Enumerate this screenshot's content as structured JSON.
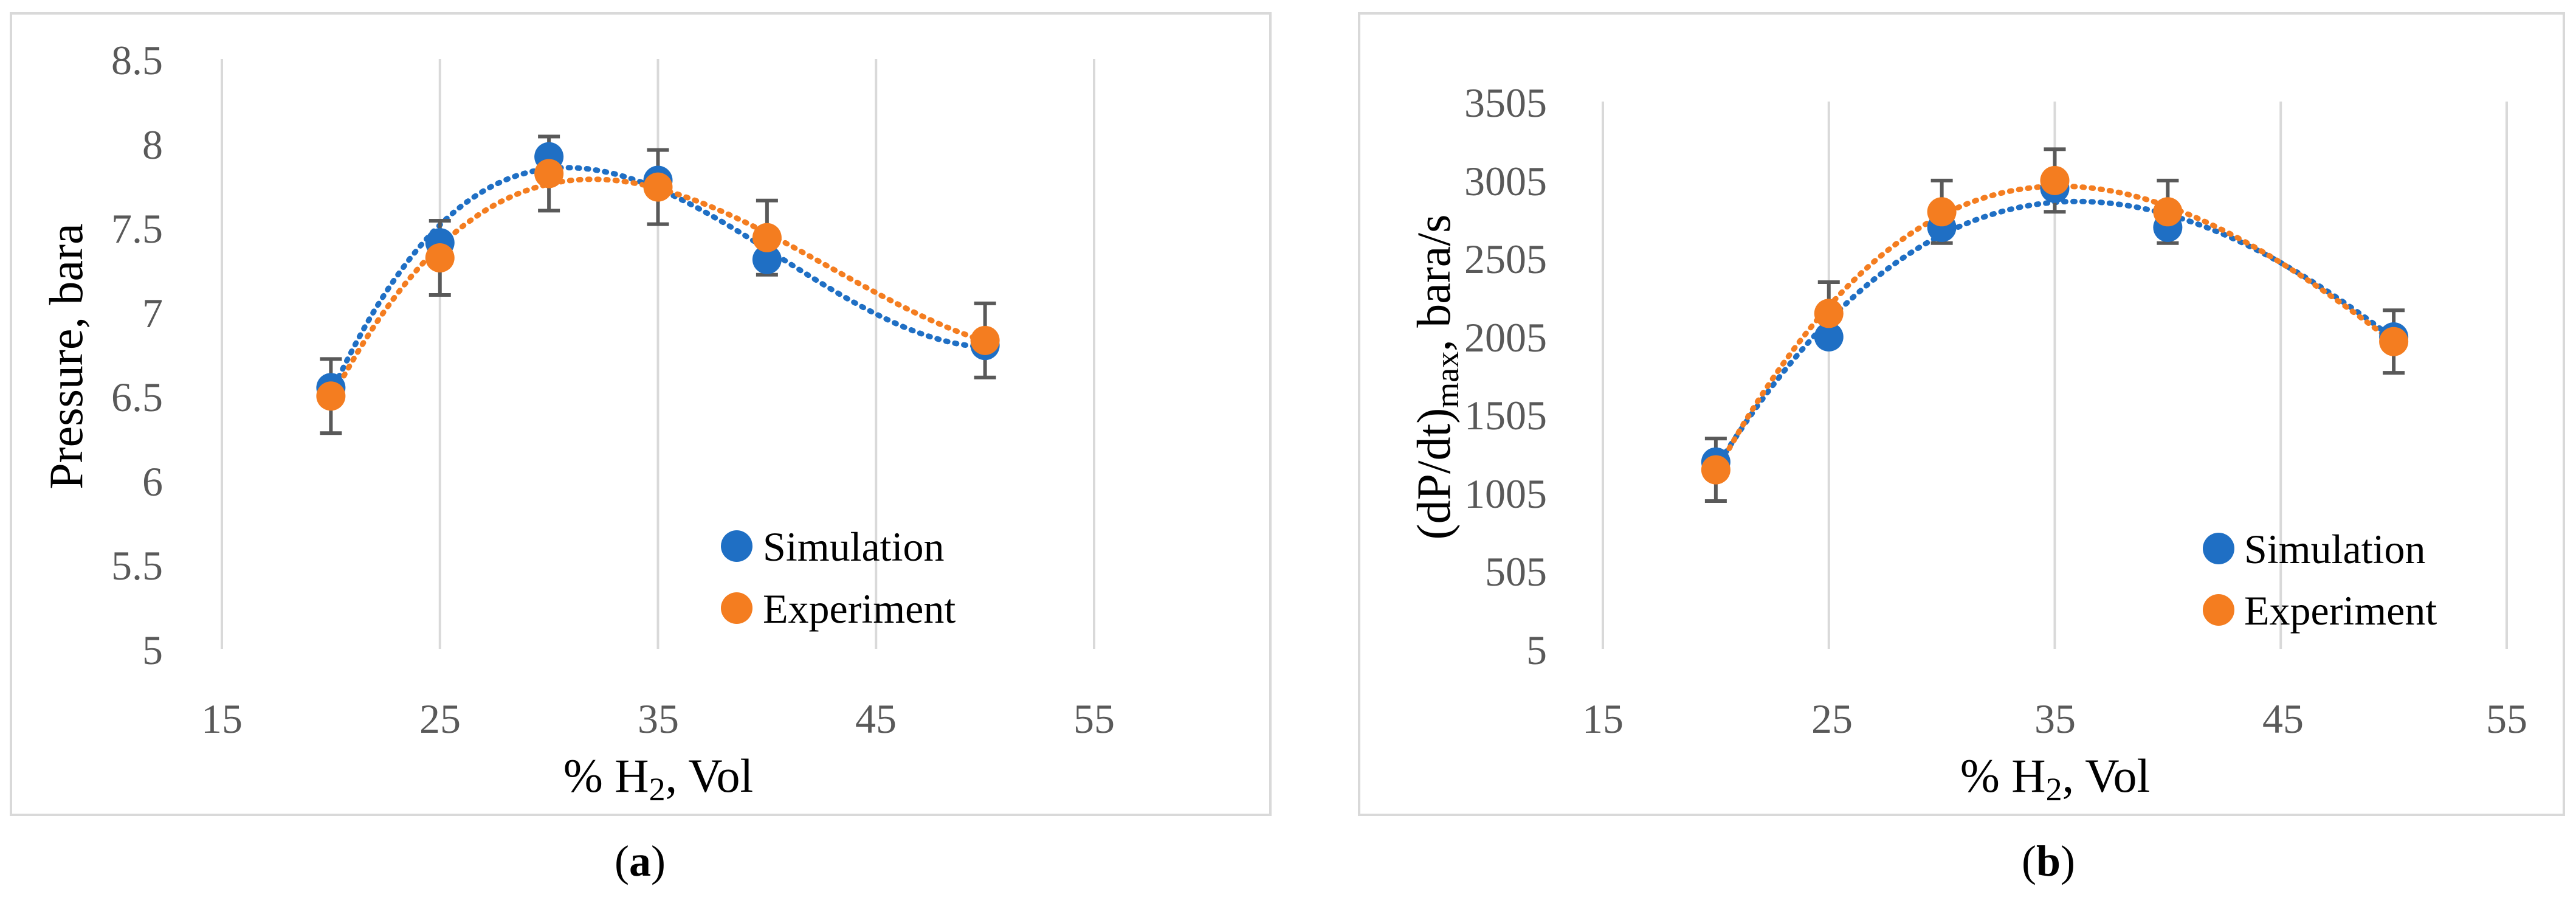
{
  "chart_data": [
    {
      "type": "scatter",
      "panel_caption": "a",
      "xlabel": "% H",
      "xlabel_subscript": "2",
      "xlabel_suffix": ", Vol",
      "ylabel": "Pressure, bara",
      "xlim": [
        15,
        55
      ],
      "ylim": [
        5,
        8.5
      ],
      "xticks": [
        "15",
        "25",
        "35",
        "45",
        "55"
      ],
      "yticks": [
        "5",
        "5.5",
        "6",
        "6.5",
        "7",
        "7.5",
        "8",
        "8.5"
      ],
      "x": [
        20,
        25,
        30,
        35,
        40,
        50
      ],
      "series": [
        {
          "name": "Simulation",
          "color": "#1f6fc4",
          "values": [
            6.55,
            7.41,
            7.92,
            7.78,
            7.31,
            6.8
          ],
          "trendline": "polynomial"
        },
        {
          "name": "Experiment",
          "color": "#f47d20",
          "values": [
            6.5,
            7.32,
            7.82,
            7.74,
            7.44,
            6.83
          ],
          "trendline": "polynomial",
          "error": 0.22
        }
      ],
      "legend": "bottom-right",
      "grid": "vertical"
    },
    {
      "type": "scatter",
      "panel_caption": "b",
      "xlabel": "% H",
      "xlabel_subscript": "2",
      "xlabel_suffix": ", Vol",
      "ylabel_prefix": "(dP/dt)",
      "ylabel_subscript": "max",
      "ylabel_suffix": ", bara/s",
      "xlim": [
        15,
        55
      ],
      "ylim": [
        5,
        3505
      ],
      "xticks": [
        "15",
        "25",
        "35",
        "45",
        "55"
      ],
      "yticks": [
        "5",
        "505",
        "1005",
        "1505",
        "2005",
        "2505",
        "3005",
        "3505"
      ],
      "x": [
        20,
        25,
        30,
        35,
        40,
        50
      ],
      "series": [
        {
          "name": "Simulation",
          "color": "#1f6fc4",
          "values": [
            1200,
            2000,
            2700,
            2950,
            2700,
            2000
          ],
          "trendline": "polynomial"
        },
        {
          "name": "Experiment",
          "color": "#f47d20",
          "values": [
            1150,
            2150,
            2800,
            3000,
            2800,
            1970
          ],
          "trendline": "polynomial",
          "error": 200
        }
      ],
      "legend": "bottom-right",
      "grid": "vertical"
    }
  ]
}
